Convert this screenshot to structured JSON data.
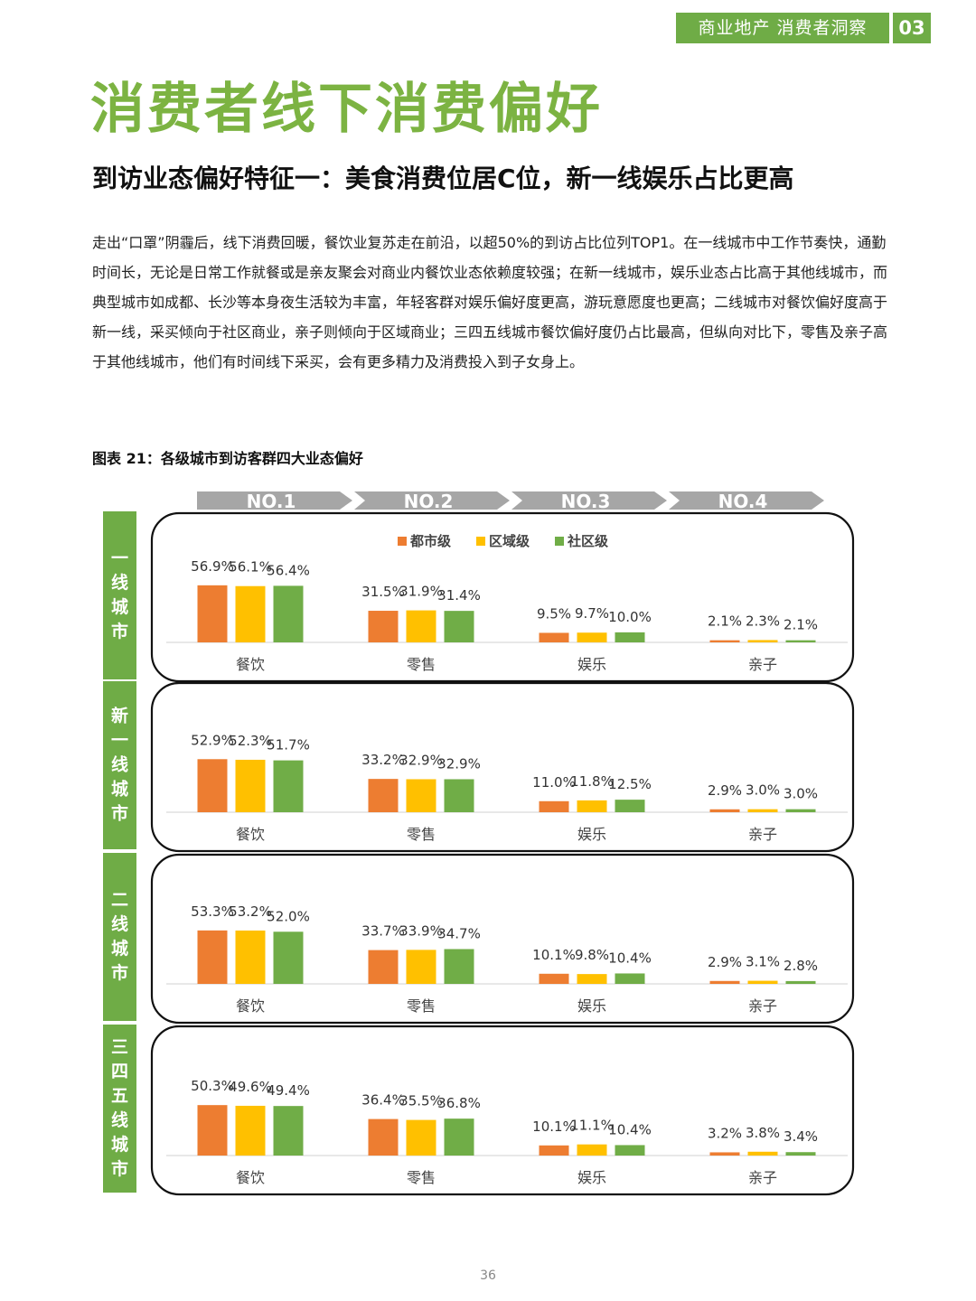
{
  "header": {
    "section_tag": "商业地产 消费者洞察",
    "section_number": "03"
  },
  "page_title": "消费者线下消费偏好",
  "subtitle": "到访业态偏好特征一：美食消费位居C位，新一线娱乐占比更高",
  "body_text": "走出“口罩”阴霾后，线下消费回暖，餐饮业复苏走在前沿，以超50%的到访占比位列TOP1。在一线城市中工作节奏快，通勤时间长，无论是日常工作就餐或是亲友聚会对商业内餐饮业态依赖度较强；在新一线城市，娱乐业态占比高于其他线城市，而典型城市如成都、长沙等本身夜生活较为丰富，年轻客群对娱乐偏好度更高，游玩意愿度也更高；二线城市对餐饮偏好度高于新一线，采买倾向于社区商业，亲子则倾向于区域商业；三四五线城市餐饮偏好度仍占比最高，但纵向对比下，零售及亲子高于其他线城市，他们有时间线下采买，会有更多精力及消费投入到子女身上。",
  "figure_caption": "图表 21：各级城市到访客群四大业态偏好",
  "page_number": "36",
  "colors": {
    "accent": "#6fac46",
    "urban": "#ed7d31",
    "district": "#ffc000",
    "community": "#70ad47",
    "rank_bar": "#a6a6a6"
  },
  "chart_data": {
    "type": "bar",
    "rank_labels": [
      "NO.1",
      "NO.2",
      "NO.3",
      "NO.4"
    ],
    "categories": [
      "餐饮",
      "零售",
      "娱乐",
      "亲子"
    ],
    "legend": [
      "都市级",
      "区域级",
      "社区级"
    ],
    "ylim": [
      0,
      60
    ],
    "panels": [
      {
        "city_tier": "一线城市",
        "series": [
          {
            "name": "都市级",
            "values": [
              56.9,
              31.5,
              9.5,
              2.1
            ],
            "labels": [
              "56.9%",
              "31.5%",
              "9.5%",
              "2.1%"
            ]
          },
          {
            "name": "区域级",
            "values": [
              56.1,
              31.9,
              9.7,
              2.3
            ],
            "labels": [
              "56.1%",
              "31.9%",
              "9.7%",
              "2.3%"
            ]
          },
          {
            "name": "社区级",
            "values": [
              56.4,
              31.4,
              10.0,
              2.1
            ],
            "labels": [
              "56.4%",
              "31.4%",
              "10.0%",
              "2.1%"
            ]
          }
        ]
      },
      {
        "city_tier": "新一线城市",
        "series": [
          {
            "name": "都市级",
            "values": [
              52.9,
              33.2,
              11.0,
              2.9
            ],
            "labels": [
              "52.9%",
              "33.2%",
              "11.0%",
              "2.9%"
            ]
          },
          {
            "name": "区域级",
            "values": [
              52.3,
              32.9,
              11.8,
              3.0
            ],
            "labels": [
              "52.3%",
              "32.9%",
              "11.8%",
              "3.0%"
            ]
          },
          {
            "name": "社区级",
            "values": [
              51.7,
              32.9,
              12.5,
              3.0
            ],
            "labels": [
              "51.7%",
              "32.9%",
              "12.5%",
              "3.0%"
            ]
          }
        ]
      },
      {
        "city_tier": "二线城市",
        "series": [
          {
            "name": "都市级",
            "values": [
              53.3,
              33.7,
              10.1,
              2.9
            ],
            "labels": [
              "53.3%",
              "33.7%",
              "10.1%",
              "2.9%"
            ]
          },
          {
            "name": "区域级",
            "values": [
              53.2,
              33.9,
              9.8,
              3.1
            ],
            "labels": [
              "53.2%",
              "33.9%",
              "9.8%",
              "3.1%"
            ]
          },
          {
            "name": "社区级",
            "values": [
              52.0,
              34.7,
              10.4,
              2.8
            ],
            "labels": [
              "52.0%",
              "34.7%",
              "10.4%",
              "2.8%"
            ]
          }
        ]
      },
      {
        "city_tier": "三四五线城市",
        "series": [
          {
            "name": "都市级",
            "values": [
              50.3,
              36.4,
              10.1,
              3.2
            ],
            "labels": [
              "50.3%",
              "36.4%",
              "10.1%",
              "3.2%"
            ]
          },
          {
            "name": "区域级",
            "values": [
              49.6,
              35.5,
              11.1,
              3.8
            ],
            "labels": [
              "49.6%",
              "35.5%",
              "11.1%",
              "3.8%"
            ]
          },
          {
            "name": "社区级",
            "values": [
              49.4,
              36.8,
              10.4,
              3.4
            ],
            "labels": [
              "49.4%",
              "36.8%",
              "10.4%",
              "3.4%"
            ]
          }
        ]
      }
    ]
  }
}
